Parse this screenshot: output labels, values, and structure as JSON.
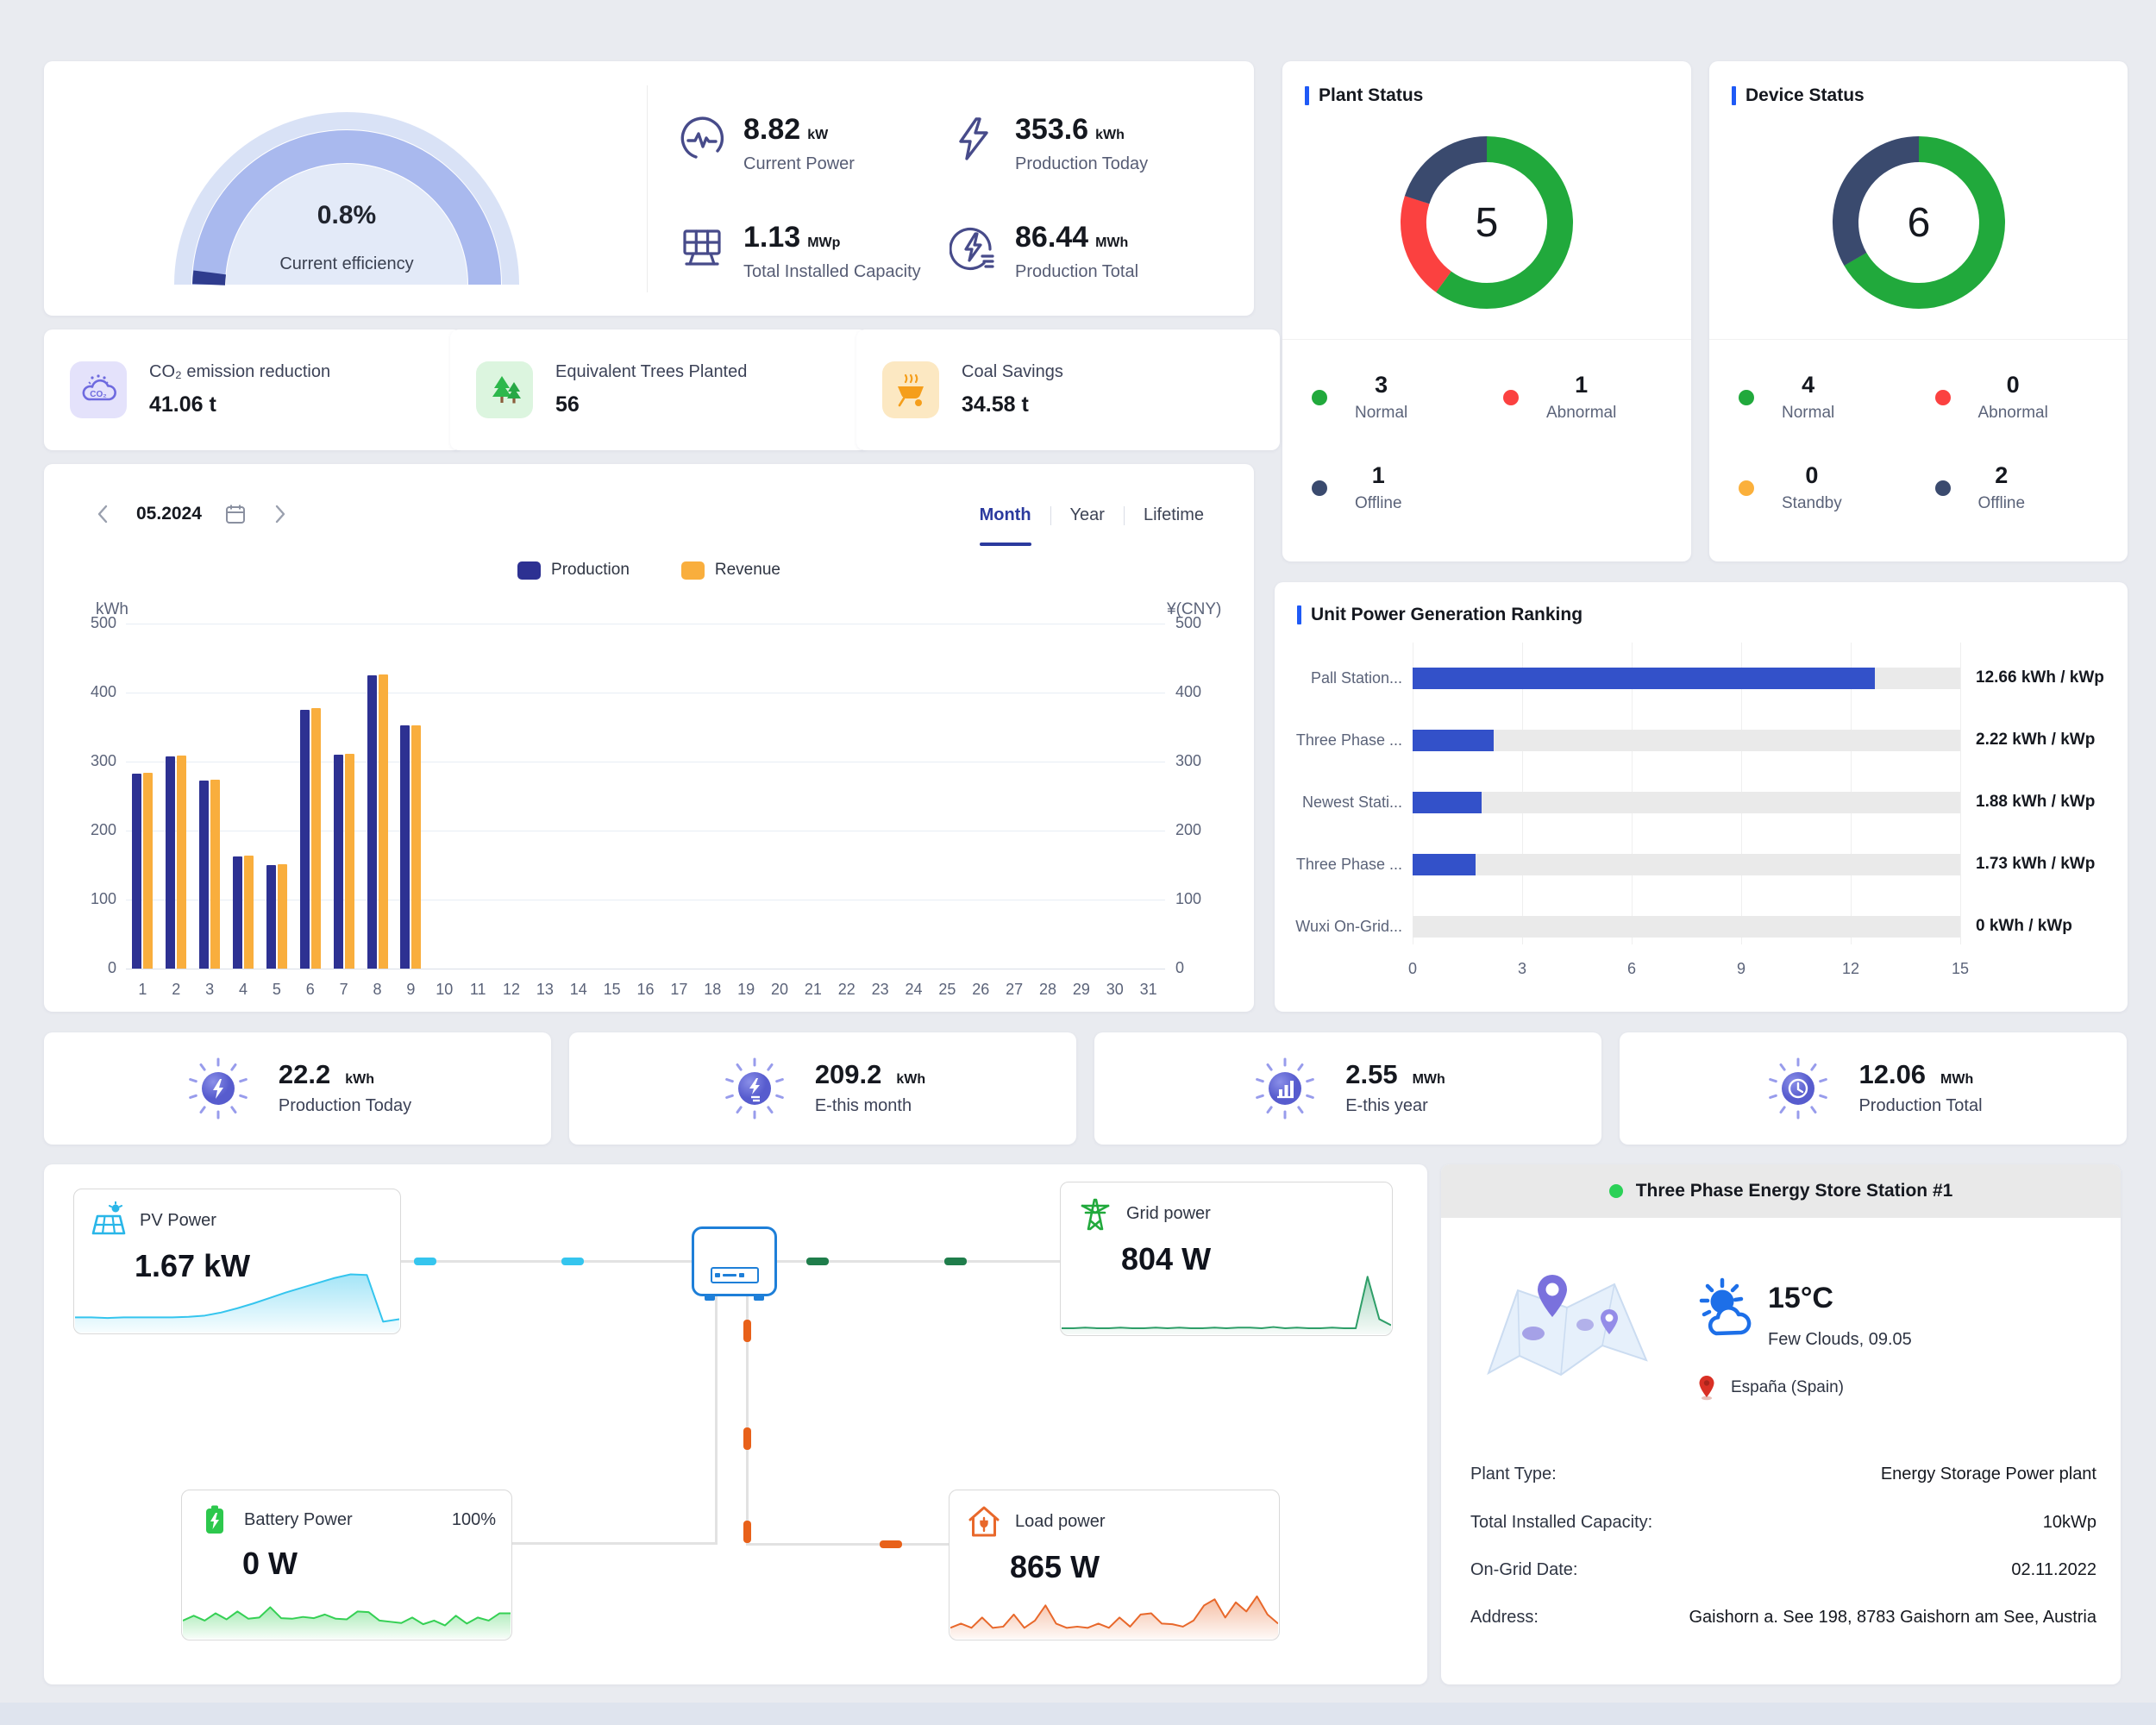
{
  "colors": {
    "accent_blue": "#1F5AF6",
    "production_navy": "#2D3192",
    "revenue_orange": "#F9AE3D",
    "ranking_blue": "#3351C9",
    "status_green": "#21A93C",
    "status_red": "#FB4140",
    "status_navy": "#3A4A6E",
    "status_yellow": "#FBB03B",
    "flow_cyan": "#35C5EE",
    "flow_green": "#1F7D4B",
    "flow_orange": "#E8611A",
    "gauge_outer": "#D9E2F6",
    "gauge_mid": "#A9B9EE",
    "gauge_inner": "#E3EAF8",
    "gauge_progress": "#2F3C8E"
  },
  "overview": {
    "gauge": {
      "value": "0.8%",
      "label": "Current efficiency"
    },
    "stats": [
      {
        "value": "8.82",
        "unit": "kW",
        "label": "Current Power",
        "icon": "pulse-circle-icon"
      },
      {
        "value": "353.6",
        "unit": "kWh",
        "label": "Production Today",
        "icon": "lightning-icon"
      },
      {
        "value": "1.13",
        "unit": "MWp",
        "label": "Total Installed Capacity",
        "icon": "solar-panel-icon"
      },
      {
        "value": "86.44",
        "unit": "MWh",
        "label": "Production Total",
        "icon": "bolt-circle-icon"
      }
    ]
  },
  "eco_cards": [
    {
      "title": "CO₂ emission reduction",
      "value": "41.06 t",
      "icon": "co2-cloud-icon"
    },
    {
      "title": "Equivalent Trees Planted",
      "value": "56",
      "icon": "trees-icon"
    },
    {
      "title": "Coal Savings",
      "value": "34.58 t",
      "icon": "coal-cart-icon"
    }
  ],
  "plant_status": {
    "title": "Plant Status",
    "total": "5",
    "segments": [
      {
        "label": "Normal",
        "count": 3,
        "color": "#21A93C"
      },
      {
        "label": "Abnormal",
        "count": 1,
        "color": "#FB4140"
      },
      {
        "label": "Offline",
        "count": 1,
        "color": "#3A4A6E"
      }
    ],
    "legend": [
      {
        "value": "3",
        "label": "Normal",
        "color": "#21A93C"
      },
      {
        "value": "1",
        "label": "Abnormal",
        "color": "#FB4140"
      },
      {
        "value": "1",
        "label": "Offline",
        "color": "#3A4A6E"
      }
    ]
  },
  "device_status": {
    "title": "Device Status",
    "total": "6",
    "segments": [
      {
        "label": "Normal",
        "count": 4,
        "color": "#21A93C"
      },
      {
        "label": "Offline",
        "count": 2,
        "color": "#3A4A6E"
      }
    ],
    "legend": [
      {
        "value": "4",
        "label": "Normal",
        "color": "#21A93C"
      },
      {
        "value": "0",
        "label": "Abnormal",
        "color": "#FB4140"
      },
      {
        "value": "0",
        "label": "Standby",
        "color": "#FBB03B"
      },
      {
        "value": "2",
        "label": "Offline",
        "color": "#3A4A6E"
      }
    ]
  },
  "production_chart": {
    "period": "05.2024",
    "tabs": [
      {
        "label": "Month",
        "active": true
      },
      {
        "label": "Year",
        "active": false
      },
      {
        "label": "Lifetime",
        "active": false
      }
    ],
    "left_axis_unit": "kWh",
    "right_axis_unit": "¥(CNY)",
    "chart_data": {
      "type": "bar",
      "categories": [
        1,
        2,
        3,
        4,
        5,
        6,
        7,
        8,
        9,
        10,
        11,
        12,
        13,
        14,
        15,
        16,
        17,
        18,
        19,
        20,
        21,
        22,
        23,
        24,
        25,
        26,
        27,
        28,
        29,
        30,
        31
      ],
      "series": [
        {
          "name": "Production",
          "color": "#2D3192",
          "values": [
            283,
            308,
            273,
            163,
            150,
            375,
            310,
            425,
            352,
            0,
            0,
            0,
            0,
            0,
            0,
            0,
            0,
            0,
            0,
            0,
            0,
            0,
            0,
            0,
            0,
            0,
            0,
            0,
            0,
            0,
            0
          ]
        },
        {
          "name": "Revenue",
          "color": "#F9AE3D",
          "values": [
            284,
            309,
            274,
            164,
            151,
            377,
            311,
            426,
            353,
            0,
            0,
            0,
            0,
            0,
            0,
            0,
            0,
            0,
            0,
            0,
            0,
            0,
            0,
            0,
            0,
            0,
            0,
            0,
            0,
            0,
            0
          ]
        }
      ],
      "ylim": [
        0,
        500
      ],
      "y_ticks": [
        0,
        100,
        200,
        300,
        400,
        500
      ]
    }
  },
  "ranking": {
    "title": "Unit Power Generation Ranking",
    "chart_data": {
      "type": "bar",
      "orientation": "horizontal",
      "categories": [
        "Pall Station...",
        "Three Phase ...",
        "Newest Stati...",
        "Three Phase ...",
        "Wuxi On-Grid..."
      ],
      "values": [
        12.66,
        2.22,
        1.88,
        1.73,
        0
      ],
      "value_labels": [
        "12.66 kWh / kWp",
        "2.22 kWh / kWp",
        "1.88 kWh / kWp",
        "1.73 kWh / kWp",
        "0 kWh / kWp"
      ],
      "x_ticks": [
        0,
        3,
        6,
        9,
        12,
        15
      ],
      "xlim": [
        0,
        15
      ]
    }
  },
  "kpi_cards": [
    {
      "value": "22.2",
      "unit": "kWh",
      "label": "Production Today",
      "icon": "sun-bolt-icon"
    },
    {
      "value": "209.2",
      "unit": "kWh",
      "label": "E-this month",
      "icon": "sun-energy-icon"
    },
    {
      "value": "2.55",
      "unit": "MWh",
      "label": "E-this year",
      "icon": "sun-chart-icon"
    },
    {
      "value": "12.06",
      "unit": "MWh",
      "label": "Production Total",
      "icon": "sun-clock-icon"
    }
  ],
  "flow": {
    "pv": {
      "title": "PV Power",
      "value": "1.67 kW",
      "spark": [
        0.25,
        0.25,
        0.24,
        0.25,
        0.25,
        0.25,
        0.25,
        0.26,
        0.28,
        0.33,
        0.4,
        0.48,
        0.57,
        0.66,
        0.74,
        0.82,
        0.9,
        0.96,
        0.95,
        0.18,
        0.22
      ]
    },
    "grid": {
      "title": "Grid power",
      "value": "804 W",
      "spark": [
        0.1,
        0.1,
        0.11,
        0.1,
        0.1,
        0.11,
        0.1,
        0.1,
        0.11,
        0.1,
        0.11,
        0.1,
        0.1,
        0.11,
        0.1,
        0.11,
        0.11,
        0.1,
        0.12,
        0.1,
        0.11,
        0.1,
        0.1,
        0.11,
        0.1,
        0.1,
        0.95,
        0.25,
        0.15
      ]
    },
    "battery": {
      "title": "Battery Power",
      "soc": "100%",
      "value": "0 W",
      "spark": [
        0.3,
        0.38,
        0.3,
        0.42,
        0.32,
        0.45,
        0.33,
        0.35,
        0.52,
        0.34,
        0.33,
        0.36,
        0.34,
        0.4,
        0.33,
        0.32,
        0.45,
        0.44,
        0.3,
        0.28,
        0.26,
        0.35,
        0.24,
        0.3,
        0.22,
        0.38,
        0.25,
        0.35,
        0.3,
        0.42,
        0.42
      ]
    },
    "load": {
      "title": "Load power",
      "value": "865 W",
      "spark": [
        0.18,
        0.25,
        0.18,
        0.35,
        0.18,
        0.2,
        0.4,
        0.18,
        0.3,
        0.55,
        0.25,
        0.18,
        0.2,
        0.18,
        0.25,
        0.18,
        0.35,
        0.2,
        0.4,
        0.42,
        0.25,
        0.24,
        0.2,
        0.3,
        0.55,
        0.65,
        0.35,
        0.6,
        0.45,
        0.7,
        0.4,
        0.25
      ]
    }
  },
  "station": {
    "title": "Three Phase Energy Store Station #1",
    "temperature": "15°C",
    "weather": "Few Clouds, 09.05",
    "location": "España (Spain)",
    "details": [
      {
        "label": "Plant Type:",
        "value": "Energy Storage Power plant"
      },
      {
        "label": "Total Installed Capacity:",
        "value": "10kWp"
      },
      {
        "label": "On-Grid Date:",
        "value": "02.11.2022"
      },
      {
        "label": "Address:",
        "value": "Gaishorn a. See 198, 8783 Gaishorn am See, Austria"
      }
    ]
  }
}
